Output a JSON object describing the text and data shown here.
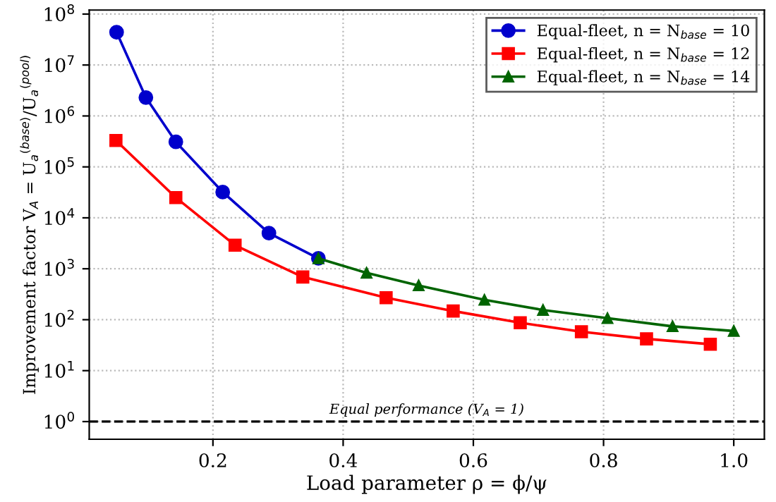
{
  "chart_data": {
    "type": "line",
    "xlabel": "Load parameter ρ = ϕ/ψ",
    "ylabel": "Improvement factor V$_{A}$ = U$_{a}$$^{(base)}$/U$_{a}$$^{(pool)}$",
    "log": "y",
    "xlim": [
      0.01,
      1.047
    ],
    "ylim": [
      0.45,
      120000000.0
    ],
    "xticks": [
      0.2,
      0.4,
      0.6,
      0.8,
      {
        "value": 1,
        "label": "1.0"
      }
    ],
    "yticks": [
      {
        "value": 1,
        "label": "10$^{0}$"
      },
      {
        "value": 10,
        "label": "10$^{1}$"
      },
      {
        "value": 100,
        "label": "10$^{2}$"
      },
      {
        "value": 1000,
        "label": "10$^{3}$"
      },
      {
        "value": 10000,
        "label": "10$^{4}$"
      },
      {
        "value": 100000,
        "label": "10$^{5}$"
      },
      {
        "value": 1000000,
        "label": "10$^{6}$"
      },
      {
        "value": 10000000,
        "label": "10$^{7}$"
      },
      {
        "value": 100000000,
        "label": "10$^{8}$"
      }
    ],
    "grid": true,
    "legend": "top right",
    "line_style": "solid",
    "ref_lines": [
      {
        "axis": "y",
        "value": 1,
        "label": "Equal performance (V$_{A}$ = 1)",
        "color": "#000000",
        "line_style": "dashed"
      }
    ],
    "series": [
      {
        "name": "Equal-fleet, n = N$_{base}$ = 10",
        "color": "#0000cc",
        "marker": "circle",
        "x": [
          0.052,
          0.097,
          0.143,
          0.215,
          0.286,
          0.362
        ],
        "values": [
          44000000,
          2300000,
          310000,
          32000,
          5000,
          1600
        ]
      },
      {
        "name": "Equal-fleet, n = N$_{base}$ = 12",
        "color": "#ff0000",
        "marker": "square",
        "x": [
          0.051,
          0.143,
          0.234,
          0.338,
          0.466,
          0.569,
          0.672,
          0.766,
          0.866,
          0.964
        ],
        "values": [
          330000,
          25000,
          2900,
          690,
          270,
          148,
          87,
          58,
          42,
          33
        ]
      },
      {
        "name": "Equal-fleet, n = N$_{base}$ = 14",
        "color": "#006400",
        "marker": "triangle",
        "x": [
          0.362,
          0.436,
          0.516,
          0.617,
          0.707,
          0.806,
          0.906,
          1.0
        ],
        "values": [
          1600,
          830,
          470,
          245,
          155,
          107,
          74,
          60
        ]
      }
    ]
  }
}
